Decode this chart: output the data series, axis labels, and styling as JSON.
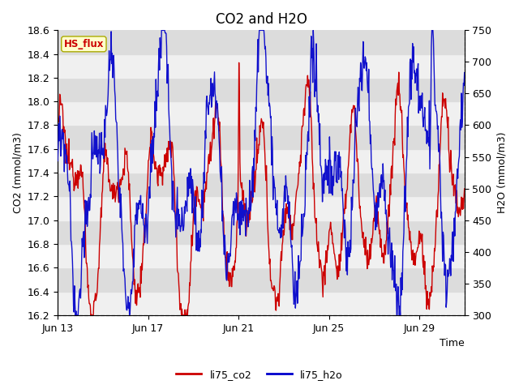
{
  "title": "CO2 and H2O",
  "xlabel": "Time",
  "ylabel_left": "CO2 (mmol/m3)",
  "ylabel_right": "H2O (mmol/m3)",
  "ylim_left": [
    16.2,
    18.6
  ],
  "ylim_right": [
    300,
    750
  ],
  "yticks_left": [
    16.2,
    16.4,
    16.6,
    16.8,
    17.0,
    17.2,
    17.4,
    17.6,
    17.8,
    18.0,
    18.2,
    18.4,
    18.6
  ],
  "yticks_right": [
    300,
    350,
    400,
    450,
    500,
    550,
    600,
    650,
    700,
    750
  ],
  "xtick_labels": [
    "Jun 13",
    "Jun 17",
    "Jun 21",
    "Jun 25",
    "Jun 29"
  ],
  "xtick_positions": [
    0,
    4,
    8,
    12,
    16
  ],
  "xlim": [
    0,
    18
  ],
  "legend_labels": [
    "li75_co2",
    "li75_h2o"
  ],
  "legend_colors": [
    "#cc0000",
    "#0000cc"
  ],
  "co2_color": "#cc0000",
  "h2o_color": "#1111cc",
  "bg_color": "#ffffff",
  "plot_bg_light": "#f0f0f0",
  "plot_bg_dark": "#dcdcdc",
  "label_box_bg": "#ffffcc",
  "label_box_edge": "#aaaa00",
  "label_text": "HS_flux",
  "label_text_color": "#cc0000",
  "title_fontsize": 12,
  "axis_fontsize": 9,
  "tick_fontsize": 9,
  "linewidth": 1.0
}
